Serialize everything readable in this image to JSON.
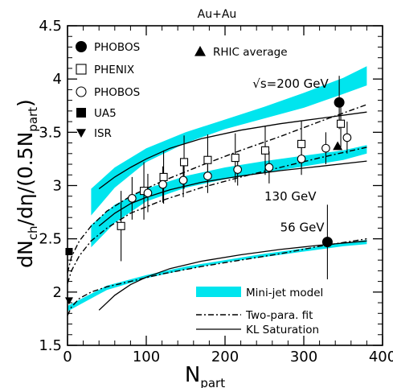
{
  "chart_data": {
    "type": "scatter",
    "title": "Au+Au",
    "xlabel": {
      "main": "N",
      "sub": "part"
    },
    "ylabel": {
      "pre": "dN",
      "sub1": "ch",
      "mid": "/dη/(0.5N",
      "sub2": "part",
      "post": ")"
    },
    "xlim": [
      0,
      400
    ],
    "ylim": [
      1.5,
      4.5
    ],
    "x_ticks": [
      0,
      100,
      200,
      300,
      400
    ],
    "x_tick_labels": [
      "0",
      "100",
      "200",
      "300",
      "400"
    ],
    "y_ticks": [
      1.5,
      2,
      2.5,
      3,
      3.5,
      4,
      4.5
    ],
    "y_tick_labels": [
      "1.5",
      "2",
      "2.5",
      "3",
      "3.5",
      "4",
      "4.5"
    ],
    "grid": false,
    "legend_position": "top-left",
    "legend_points": [
      {
        "name": "PHOBOS",
        "marker": "filled-circle"
      },
      {
        "name": "PHENIX",
        "marker": "open-square"
      },
      {
        "name": "PHOBOS",
        "marker": "open-circle"
      },
      {
        "name": "UA5",
        "marker": "filled-square"
      },
      {
        "name": "ISR",
        "marker": "filled-down-triangle"
      },
      {
        "name": "RHIC average",
        "marker": "filled-up-triangle"
      }
    ],
    "legend_models": [
      {
        "name": "Mini-jet model",
        "style": "band"
      },
      {
        "name": "Two-para. fit",
        "style": "dash-dot"
      },
      {
        "name": "KL Saturation",
        "style": "solid"
      }
    ],
    "annotations": [
      {
        "label": "√s=200 GeV",
        "x": 235,
        "y": 3.92
      },
      {
        "label": "130 GeV",
        "x": 250,
        "y": 2.86
      },
      {
        "label": "56 GeV",
        "x": 270,
        "y": 2.57
      }
    ],
    "band_color": "#00e5ee",
    "series": [
      {
        "name": "PHOBOS",
        "marker": "filled-circle",
        "points": [
          {
            "x": 330,
            "y": 2.47,
            "err": 0.35
          },
          {
            "x": 345,
            "y": 3.78,
            "err": 0.25
          }
        ]
      },
      {
        "name": "PHENIX",
        "marker": "open-square",
        "points": [
          {
            "x": 68,
            "y": 2.62,
            "err": 0.33
          },
          {
            "x": 97,
            "y": 2.95,
            "err": 0.27
          },
          {
            "x": 122,
            "y": 3.08,
            "err": 0.25
          },
          {
            "x": 148,
            "y": 3.22,
            "err": 0.25
          },
          {
            "x": 178,
            "y": 3.24,
            "err": 0.24
          },
          {
            "x": 213,
            "y": 3.26,
            "err": 0.23
          },
          {
            "x": 251,
            "y": 3.33,
            "err": 0.23
          },
          {
            "x": 297,
            "y": 3.39,
            "err": 0.22
          },
          {
            "x": 347,
            "y": 3.58,
            "err": 0.22
          }
        ]
      },
      {
        "name": "PHOBOS",
        "marker": "open-circle",
        "points": [
          {
            "x": 82,
            "y": 2.88,
            "err": 0.2
          },
          {
            "x": 102,
            "y": 2.93,
            "err": 0.18
          },
          {
            "x": 121,
            "y": 3.01,
            "err": 0.17
          },
          {
            "x": 147,
            "y": 3.05,
            "err": 0.16
          },
          {
            "x": 178,
            "y": 3.09,
            "err": 0.16
          },
          {
            "x": 216,
            "y": 3.15,
            "err": 0.15
          },
          {
            "x": 256,
            "y": 3.17,
            "err": 0.15
          },
          {
            "x": 297,
            "y": 3.25,
            "err": 0.15
          },
          {
            "x": 328,
            "y": 3.35,
            "err": 0.15
          },
          {
            "x": 355,
            "y": 3.45,
            "err": 0.15
          }
        ]
      },
      {
        "name": "UA5",
        "marker": "filled-square",
        "points": [
          {
            "x": 2,
            "y": 2.38
          }
        ]
      },
      {
        "name": "ISR",
        "marker": "filled-down-triangle",
        "points": [
          {
            "x": 2,
            "y": 1.92
          }
        ]
      },
      {
        "name": "RHIC average",
        "marker": "filled-up-triangle",
        "points": [
          {
            "x": 343,
            "y": 3.37
          }
        ]
      }
    ],
    "bands": [
      {
        "name": "200 GeV",
        "lower": {
          "x": [
            30,
            60,
            100,
            150,
            200,
            250,
            300,
            350,
            380
          ],
          "y": [
            2.72,
            2.98,
            3.22,
            3.4,
            3.53,
            3.63,
            3.73,
            3.86,
            3.94
          ]
        },
        "upper": {
          "x": [
            30,
            60,
            100,
            150,
            200,
            250,
            300,
            350,
            380
          ],
          "y": [
            2.97,
            3.17,
            3.35,
            3.5,
            3.62,
            3.74,
            3.87,
            4.01,
            4.12
          ]
        }
      },
      {
        "name": "130 GeV",
        "lower": {
          "x": [
            30,
            60,
            100,
            150,
            200,
            250,
            300,
            350,
            380
          ],
          "y": [
            2.42,
            2.65,
            2.85,
            2.98,
            3.06,
            3.12,
            3.18,
            3.24,
            3.3
          ]
        },
        "upper": {
          "x": [
            30,
            60,
            100,
            150,
            200,
            250,
            300,
            350,
            380
          ],
          "y": [
            2.63,
            2.82,
            2.97,
            3.09,
            3.17,
            3.23,
            3.28,
            3.33,
            3.38
          ]
        }
      },
      {
        "name": "56 GeV",
        "lower": {
          "x": [
            0,
            50,
            100,
            150,
            200,
            250,
            300,
            350,
            380
          ],
          "y": [
            1.82,
            2.02,
            2.13,
            2.21,
            2.28,
            2.33,
            2.38,
            2.43,
            2.45
          ]
        },
        "upper": {
          "x": [
            0,
            50,
            100,
            150,
            200,
            250,
            300,
            350,
            380
          ],
          "y": [
            1.87,
            2.06,
            2.16,
            2.24,
            2.3,
            2.36,
            2.41,
            2.46,
            2.49
          ]
        }
      }
    ],
    "fit_curves": [
      {
        "name": "Two-para. fit 200 GeV",
        "x": [
          0,
          5,
          15,
          30,
          50,
          80,
          120,
          170,
          220,
          270,
          320,
          380
        ],
        "y": [
          2.18,
          2.33,
          2.48,
          2.62,
          2.76,
          2.9,
          3.04,
          3.19,
          3.33,
          3.46,
          3.6,
          3.76
        ]
      },
      {
        "name": "Two-para. fit 130 GeV",
        "x": [
          0,
          5,
          15,
          30,
          50,
          80,
          120,
          170,
          220,
          270,
          320,
          380
        ],
        "y": [
          2.08,
          2.2,
          2.34,
          2.48,
          2.6,
          2.74,
          2.86,
          2.98,
          3.08,
          3.17,
          3.26,
          3.36
        ]
      },
      {
        "name": "Two-para. fit 56 GeV",
        "x": [
          0,
          5,
          15,
          30,
          50,
          80,
          120,
          170,
          220,
          270,
          320,
          380
        ],
        "y": [
          1.78,
          1.86,
          1.94,
          2.0,
          2.05,
          2.1,
          2.17,
          2.24,
          2.3,
          2.36,
          2.43,
          2.5
        ]
      }
    ],
    "kl_curves": [
      {
        "name": "KL Saturation 200 GeV",
        "x": [
          40,
          60,
          80,
          100,
          130,
          170,
          220,
          270,
          320,
          380
        ],
        "y": [
          2.97,
          3.08,
          3.17,
          3.25,
          3.35,
          3.44,
          3.52,
          3.58,
          3.63,
          3.69
        ]
      },
      {
        "name": "KL Saturation 130 GeV",
        "x": [
          40,
          60,
          80,
          100,
          130,
          170,
          220,
          270,
          320,
          380
        ],
        "y": [
          2.62,
          2.74,
          2.83,
          2.89,
          2.96,
          3.03,
          3.09,
          3.14,
          3.18,
          3.23
        ]
      },
      {
        "name": "KL Saturation 56 GeV",
        "x": [
          40,
          60,
          80,
          100,
          130,
          170,
          220,
          270,
          320,
          380
        ],
        "y": [
          1.83,
          1.97,
          2.07,
          2.14,
          2.22,
          2.29,
          2.35,
          2.4,
          2.44,
          2.48
        ]
      }
    ]
  }
}
